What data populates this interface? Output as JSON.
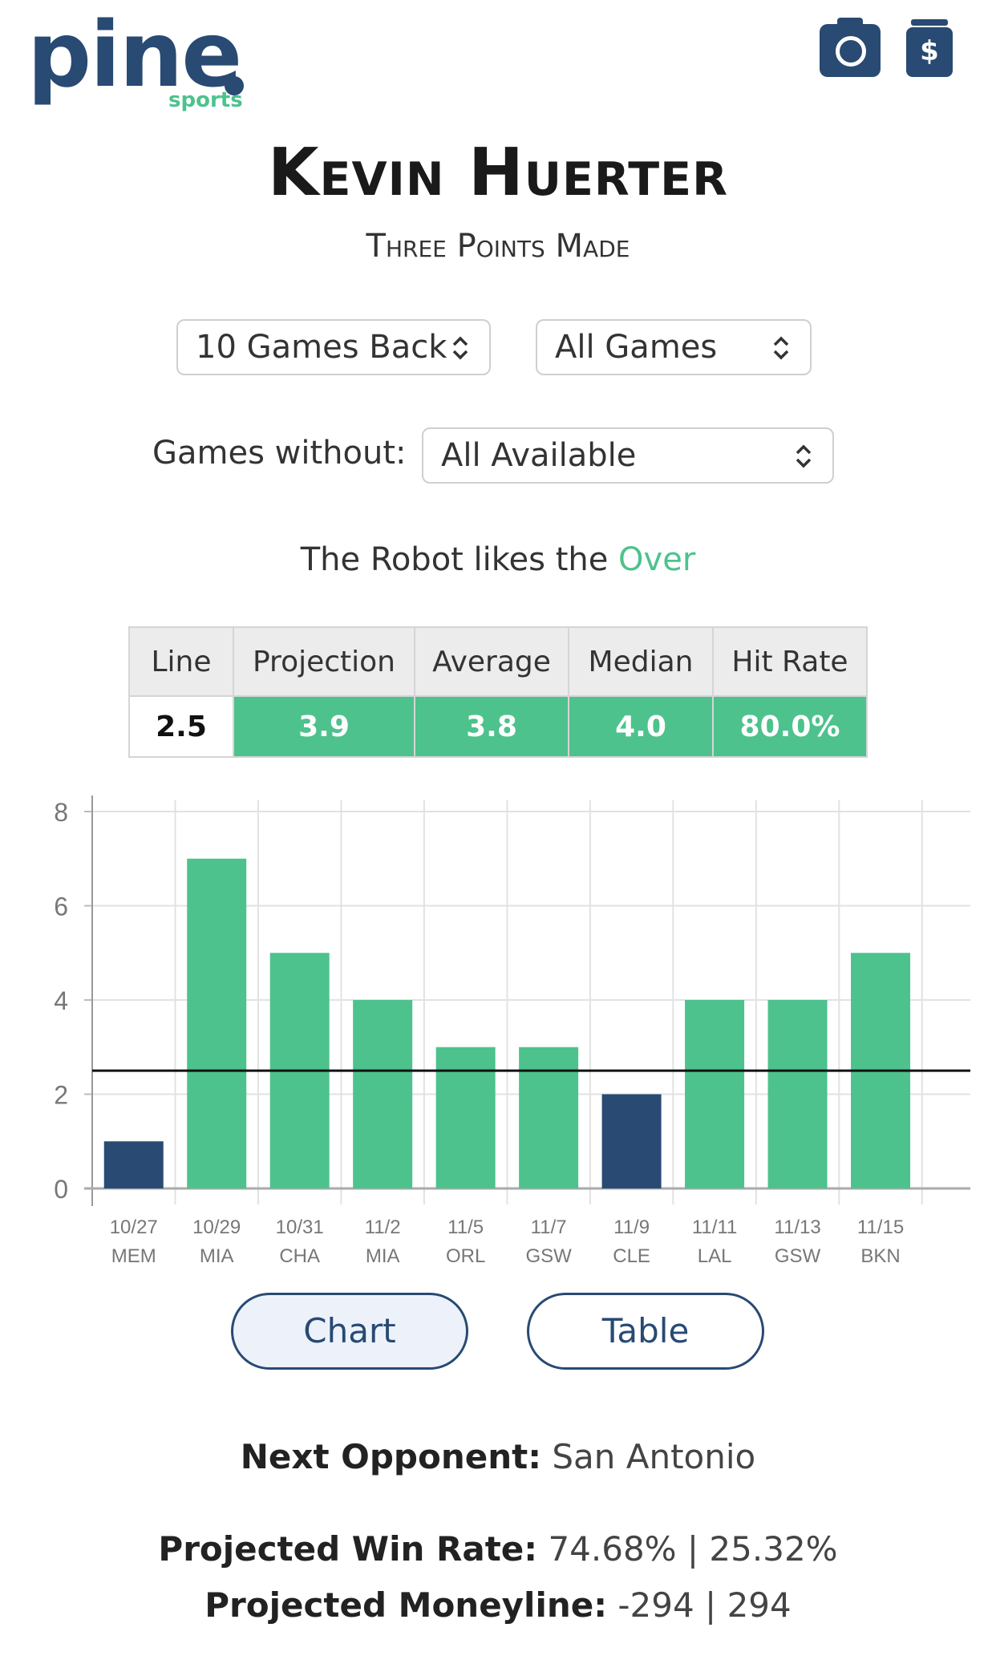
{
  "brand": {
    "name": "pine",
    "sub": "sports"
  },
  "header": {
    "camera_icon": "camera-icon",
    "tip_icon": "dollar-jar-icon"
  },
  "player": {
    "name": "Kevin Huerter",
    "stat": "Three Points Made"
  },
  "filters": {
    "games_back": "10 Games Back",
    "game_type": "All Games",
    "games_without_label": "Games without:",
    "games_without": "All Available"
  },
  "robot": {
    "prefix": "The Robot likes the ",
    "pick": "Over",
    "pick_color": "#4dc28d"
  },
  "stats_table": {
    "headers": [
      "Line",
      "Projection",
      "Average",
      "Median",
      "Hit Rate"
    ],
    "values": [
      "2.5",
      "3.9",
      "3.8",
      "4.0",
      "80.0%"
    ]
  },
  "chart_data": {
    "type": "bar",
    "categories": [
      "10/27 MEM",
      "10/29 MIA",
      "10/31 CHA",
      "11/2 MIA",
      "11/5 ORL",
      "11/7 GSW",
      "11/9 CLE",
      "11/11 LAL",
      "11/13 GSW",
      "11/15 BKN"
    ],
    "dates": [
      "10/27",
      "10/29",
      "10/31",
      "11/2",
      "11/5",
      "11/7",
      "11/9",
      "11/11",
      "11/13",
      "11/15"
    ],
    "opponents": [
      "MEM",
      "MIA",
      "CHA",
      "MIA",
      "ORL",
      "GSW",
      "CLE",
      "LAL",
      "GSW",
      "BKN"
    ],
    "values": [
      1,
      7,
      5,
      4,
      3,
      3,
      2,
      4,
      4,
      5
    ],
    "line": 2.5,
    "ylim": [
      0,
      8
    ],
    "yticks": [
      0,
      2,
      4,
      6,
      8
    ],
    "grid": true,
    "colors": {
      "over": "#4dc28d",
      "under": "#284a73",
      "line": "#111111"
    }
  },
  "view_toggle": {
    "chart": "Chart",
    "table": "Table",
    "active": "chart"
  },
  "next_opponent": {
    "label": "Next Opponent:",
    "value": "San Antonio"
  },
  "win_rate": {
    "label": "Projected Win Rate:",
    "value": "74.68% | 25.32%"
  },
  "moneyline": {
    "label": "Projected Moneyline:",
    "value": "-294 | 294"
  }
}
